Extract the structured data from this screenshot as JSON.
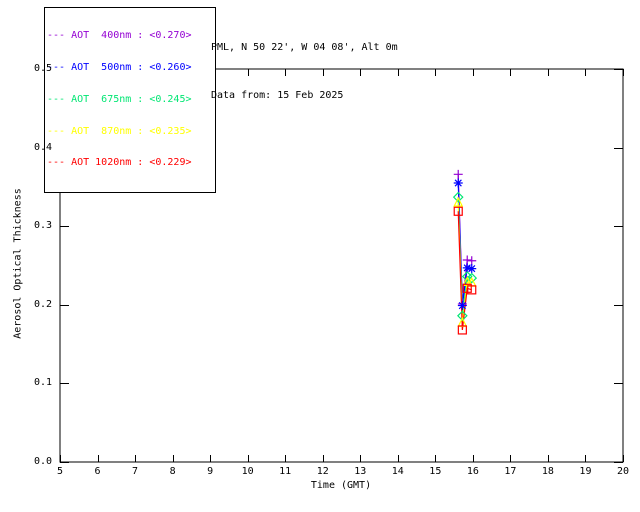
{
  "header": {
    "title_line1": "PML, N 50 22', W 04 08', Alt 0m",
    "title_line2": "Data from: 15 Feb 2025"
  },
  "legend": {
    "entries": [
      {
        "label": "--- AOT  400nm : <0.270>",
        "color": "#9400D3"
      },
      {
        "label": "--- AOT  500nm : <0.260>",
        "color": "#0000FF"
      },
      {
        "label": "--- AOT  675nm : <0.245>",
        "color": "#00E673"
      },
      {
        "label": "--- AOT  870nm : <0.235>",
        "color": "#FFFF00"
      },
      {
        "label": "--- AOT 1020nm : <0.229>",
        "color": "#FF0000"
      }
    ]
  },
  "chart_data": {
    "type": "line",
    "title": "",
    "xlabel": "Time (GMT)",
    "ylabel": "Aerosol Optical Thickness",
    "xlim": [
      5,
      20
    ],
    "ylim": [
      0.0,
      0.5
    ],
    "xticks": [
      "5",
      "6",
      "7",
      "8",
      "9",
      "10",
      "11",
      "12",
      "13",
      "14",
      "15",
      "16",
      "17",
      "18",
      "19",
      "20"
    ],
    "yticks": [
      "0.0",
      "0.1",
      "0.2",
      "0.3",
      "0.4",
      "0.5"
    ],
    "grid": false,
    "legend_position": "top-left",
    "x": [
      15.61,
      15.72,
      15.85,
      15.97
    ],
    "series": [
      {
        "name": "AOT 400nm",
        "mean": "<0.270>",
        "color": "#9400D3",
        "marker": "plus",
        "values": [
          0.366,
          0.201,
          0.257,
          0.256
        ]
      },
      {
        "name": "AOT 500nm",
        "mean": "<0.260>",
        "color": "#0000FF",
        "marker": "asterisk",
        "values": [
          0.355,
          0.199,
          0.247,
          0.246
        ]
      },
      {
        "name": "AOT 675nm",
        "mean": "<0.245>",
        "color": "#00E673",
        "marker": "diamond",
        "values": [
          0.337,
          0.186,
          0.236,
          0.234
        ]
      },
      {
        "name": "AOT 870nm",
        "mean": "<0.235>",
        "color": "#FFFF00",
        "marker": "triangle",
        "values": [
          0.33,
          0.177,
          0.229,
          0.228
        ]
      },
      {
        "name": "AOT 1020nm",
        "mean": "<0.229>",
        "color": "#FF0000",
        "marker": "square",
        "values": [
          0.319,
          0.168,
          0.221,
          0.219
        ]
      }
    ]
  }
}
